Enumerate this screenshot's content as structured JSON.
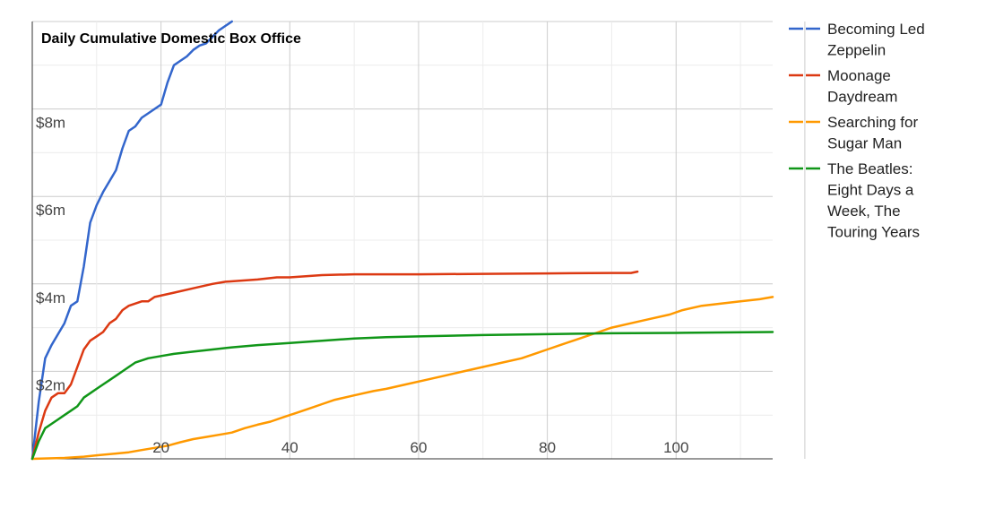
{
  "chart_data": {
    "type": "line",
    "title": "Daily Cumulative Domestic Box Office",
    "xlabel": "",
    "ylabel": "",
    "xlim": [
      0,
      115
    ],
    "ylim": [
      0,
      10
    ],
    "x_ticks": [
      {
        "value": 20,
        "label": "20"
      },
      {
        "value": 40,
        "label": "40"
      },
      {
        "value": 60,
        "label": "60"
      },
      {
        "value": 80,
        "label": "80"
      },
      {
        "value": 100,
        "label": "100"
      }
    ],
    "y_ticks": [
      {
        "value": 2,
        "label": "$2m"
      },
      {
        "value": 4,
        "label": "$4m"
      },
      {
        "value": 6,
        "label": "$6m"
      },
      {
        "value": 8,
        "label": "$8m"
      }
    ],
    "grid": true,
    "legend_position": "right",
    "series": [
      {
        "name": "Becoming Led Zeppelin",
        "color": "#3366cc",
        "points": [
          [
            0,
            0
          ],
          [
            1,
            1.3
          ],
          [
            2,
            2.3
          ],
          [
            3,
            2.6
          ],
          [
            5,
            3.1
          ],
          [
            6,
            3.5
          ],
          [
            7,
            3.6
          ],
          [
            8,
            4.4
          ],
          [
            9,
            5.4
          ],
          [
            10,
            5.8
          ],
          [
            11,
            6.1
          ],
          [
            13,
            6.6
          ],
          [
            14,
            7.1
          ],
          [
            15,
            7.5
          ],
          [
            16,
            7.6
          ],
          [
            17,
            7.8
          ],
          [
            18,
            7.9
          ],
          [
            20,
            8.1
          ],
          [
            21,
            8.6
          ],
          [
            22,
            9.0
          ],
          [
            23,
            9.1
          ],
          [
            24,
            9.2
          ],
          [
            25,
            9.35
          ],
          [
            26,
            9.45
          ],
          [
            27,
            9.5
          ],
          [
            28,
            9.65
          ],
          [
            29,
            9.8
          ],
          [
            30,
            9.9
          ],
          [
            31,
            10.0
          ]
        ]
      },
      {
        "name": "Moonage Daydream",
        "color": "#dc3912",
        "points": [
          [
            0,
            0
          ],
          [
            1,
            0.6
          ],
          [
            2,
            1.1
          ],
          [
            3,
            1.4
          ],
          [
            4,
            1.5
          ],
          [
            5,
            1.5
          ],
          [
            6,
            1.7
          ],
          [
            7,
            2.1
          ],
          [
            8,
            2.5
          ],
          [
            9,
            2.7
          ],
          [
            10,
            2.8
          ],
          [
            11,
            2.9
          ],
          [
            12,
            3.1
          ],
          [
            13,
            3.2
          ],
          [
            14,
            3.4
          ],
          [
            15,
            3.5
          ],
          [
            17,
            3.6
          ],
          [
            18,
            3.6
          ],
          [
            19,
            3.7
          ],
          [
            22,
            3.8
          ],
          [
            25,
            3.9
          ],
          [
            28,
            4.0
          ],
          [
            30,
            4.05
          ],
          [
            35,
            4.1
          ],
          [
            38,
            4.15
          ],
          [
            40,
            4.15
          ],
          [
            45,
            4.2
          ],
          [
            50,
            4.22
          ],
          [
            60,
            4.22
          ],
          [
            70,
            4.23
          ],
          [
            80,
            4.24
          ],
          [
            90,
            4.25
          ],
          [
            93,
            4.25
          ],
          [
            94,
            4.28
          ]
        ]
      },
      {
        "name": "Searching for Sugar Man",
        "color": "#ff9900",
        "points": [
          [
            0,
            0
          ],
          [
            5,
            0.02
          ],
          [
            8,
            0.05
          ],
          [
            10,
            0.08
          ],
          [
            13,
            0.12
          ],
          [
            15,
            0.15
          ],
          [
            17,
            0.2
          ],
          [
            19,
            0.25
          ],
          [
            21,
            0.3
          ],
          [
            23,
            0.38
          ],
          [
            25,
            0.45
          ],
          [
            27,
            0.5
          ],
          [
            29,
            0.55
          ],
          [
            31,
            0.6
          ],
          [
            33,
            0.7
          ],
          [
            35,
            0.78
          ],
          [
            37,
            0.85
          ],
          [
            39,
            0.95
          ],
          [
            41,
            1.05
          ],
          [
            43,
            1.15
          ],
          [
            45,
            1.25
          ],
          [
            47,
            1.35
          ],
          [
            50,
            1.45
          ],
          [
            53,
            1.55
          ],
          [
            55,
            1.6
          ],
          [
            58,
            1.7
          ],
          [
            61,
            1.8
          ],
          [
            64,
            1.9
          ],
          [
            67,
            2.0
          ],
          [
            70,
            2.1
          ],
          [
            73,
            2.2
          ],
          [
            76,
            2.3
          ],
          [
            78,
            2.4
          ],
          [
            80,
            2.5
          ],
          [
            82,
            2.6
          ],
          [
            85,
            2.75
          ],
          [
            88,
            2.9
          ],
          [
            90,
            3.0
          ],
          [
            93,
            3.1
          ],
          [
            96,
            3.2
          ],
          [
            99,
            3.3
          ],
          [
            101,
            3.4
          ],
          [
            104,
            3.5
          ],
          [
            107,
            3.55
          ],
          [
            110,
            3.6
          ],
          [
            113,
            3.65
          ],
          [
            115,
            3.7
          ]
        ]
      },
      {
        "name": "The Beatles: Eight Days a Week, The Touring Years",
        "color": "#109618",
        "points": [
          [
            0,
            0
          ],
          [
            1,
            0.4
          ],
          [
            2,
            0.7
          ],
          [
            3,
            0.8
          ],
          [
            4,
            0.9
          ],
          [
            5,
            1.0
          ],
          [
            6,
            1.1
          ],
          [
            7,
            1.2
          ],
          [
            8,
            1.4
          ],
          [
            9,
            1.5
          ],
          [
            10,
            1.6
          ],
          [
            11,
            1.7
          ],
          [
            12,
            1.8
          ],
          [
            13,
            1.9
          ],
          [
            14,
            2.0
          ],
          [
            15,
            2.1
          ],
          [
            16,
            2.2
          ],
          [
            18,
            2.3
          ],
          [
            20,
            2.35
          ],
          [
            22,
            2.4
          ],
          [
            25,
            2.45
          ],
          [
            28,
            2.5
          ],
          [
            31,
            2.55
          ],
          [
            35,
            2.6
          ],
          [
            40,
            2.65
          ],
          [
            45,
            2.7
          ],
          [
            50,
            2.75
          ],
          [
            55,
            2.78
          ],
          [
            60,
            2.8
          ],
          [
            70,
            2.83
          ],
          [
            80,
            2.85
          ],
          [
            90,
            2.87
          ],
          [
            100,
            2.88
          ],
          [
            115,
            2.9
          ]
        ]
      }
    ]
  }
}
